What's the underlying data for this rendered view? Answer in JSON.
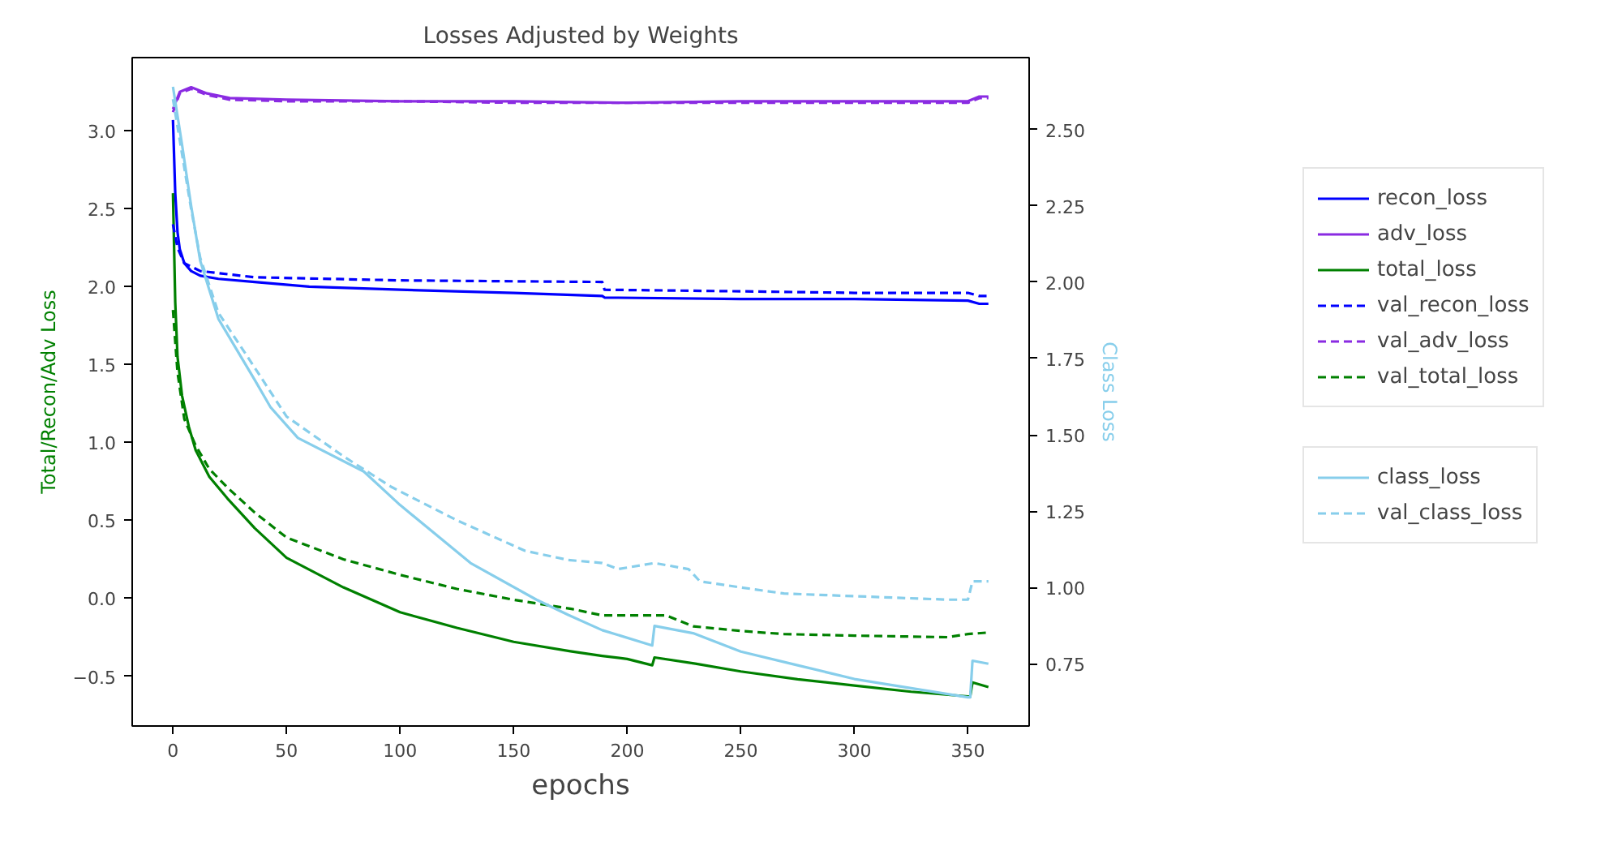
{
  "chart_data": {
    "type": "line",
    "title": "Losses Adjusted by Weights",
    "xlabel": "epochs",
    "ylabel": "Total/Recon/Adv Loss",
    "y2label": "Class Loss",
    "xlim": [
      -17.95,
      376.95
    ],
    "xticks": [
      0,
      50,
      100,
      150,
      200,
      250,
      300,
      350
    ],
    "ylim": [
      -0.82,
      3.47
    ],
    "yticks": [
      {
        "value": -0.5,
        "label": "−0.5"
      },
      {
        "value": 0,
        "label": "0.0"
      },
      0.5,
      {
        "value": 1,
        "label": "1.0"
      },
      1.5,
      {
        "value": 2,
        "label": "2.0"
      },
      2.5,
      {
        "value": 3,
        "label": "3.0"
      }
    ],
    "y2lim": [
      0.546,
      2.736
    ],
    "y2ticks": [
      0.75,
      {
        "value": 1,
        "label": "1.00"
      },
      1.25,
      {
        "value": 1.5,
        "label": "1.50"
      },
      1.75,
      {
        "value": 2,
        "label": "2.00"
      },
      2.25,
      {
        "value": 2.5,
        "label": "2.50"
      }
    ],
    "grid": false,
    "legend": "right",
    "marker": "none",
    "series": [
      {
        "name": "recon_loss",
        "color": "#0000ff",
        "line_style": "solid",
        "x": [
          0,
          1,
          2,
          3,
          5,
          8,
          12,
          20,
          36,
          60,
          100,
          150,
          189,
          190,
          250,
          300,
          350,
          355,
          359
        ],
        "values": [
          3.07,
          2.6,
          2.35,
          2.24,
          2.15,
          2.1,
          2.07,
          2.05,
          2.03,
          2.0,
          1.98,
          1.96,
          1.94,
          1.93,
          1.92,
          1.92,
          1.91,
          1.89,
          1.89
        ]
      },
      {
        "name": "adv_loss",
        "color": "#8a2be2",
        "line_style": "solid",
        "x": [
          0,
          3,
          8,
          15,
          25,
          50,
          100,
          150,
          200,
          250,
          300,
          350,
          355,
          359
        ],
        "values": [
          3.14,
          3.25,
          3.28,
          3.24,
          3.21,
          3.2,
          3.19,
          3.19,
          3.18,
          3.19,
          3.19,
          3.19,
          3.22,
          3.22
        ]
      },
      {
        "name": "total_loss",
        "color": "#008000",
        "line_style": "solid",
        "x": [
          0,
          1,
          2,
          4,
          7,
          10,
          16,
          24,
          36,
          50,
          75,
          100,
          125,
          150,
          175,
          189,
          200,
          211,
          212,
          230,
          250,
          275,
          300,
          325,
          350,
          351,
          352,
          359
        ],
        "values": [
          2.6,
          1.9,
          1.55,
          1.3,
          1.1,
          0.95,
          0.78,
          0.64,
          0.45,
          0.26,
          0.07,
          -0.09,
          -0.19,
          -0.28,
          -0.34,
          -0.37,
          -0.39,
          -0.43,
          -0.38,
          -0.42,
          -0.47,
          -0.52,
          -0.56,
          -0.6,
          -0.63,
          -0.63,
          -0.54,
          -0.57
        ]
      },
      {
        "name": "val_recon_loss",
        "color": "#0000ff",
        "line_style": "dashed",
        "x": [
          0,
          2,
          5,
          12,
          36,
          100,
          189,
          190,
          250,
          300,
          350,
          355,
          359
        ],
        "values": [
          2.4,
          2.25,
          2.15,
          2.1,
          2.06,
          2.04,
          2.03,
          1.98,
          1.97,
          1.96,
          1.96,
          1.94,
          1.94
        ]
      },
      {
        "name": "val_adv_loss",
        "color": "#8a2be2",
        "line_style": "dashed",
        "x": [
          0,
          3,
          8,
          15,
          25,
          50,
          100,
          150,
          200,
          250,
          300,
          350,
          355,
          359
        ],
        "values": [
          3.12,
          3.24,
          3.27,
          3.23,
          3.2,
          3.19,
          3.19,
          3.18,
          3.18,
          3.18,
          3.18,
          3.18,
          3.21,
          3.21
        ]
      },
      {
        "name": "val_total_loss",
        "color": "#008000",
        "line_style": "dashed",
        "x": [
          0,
          2,
          5,
          10,
          16,
          24,
          36,
          50,
          75,
          100,
          125,
          150,
          176,
          189,
          217,
          229,
          250,
          269,
          300,
          341,
          350,
          359
        ],
        "values": [
          1.85,
          1.45,
          1.15,
          0.98,
          0.83,
          0.71,
          0.55,
          0.39,
          0.25,
          0.15,
          0.06,
          -0.01,
          -0.07,
          -0.11,
          -0.11,
          -0.18,
          -0.21,
          -0.23,
          -0.24,
          -0.25,
          -0.23,
          -0.22
        ]
      },
      {
        "name": "class_loss",
        "color": "#87ceeb",
        "line_style": "solid",
        "axis": "y2",
        "x": [
          0,
          4,
          8,
          12,
          20,
          36,
          43,
          55,
          84,
          100,
          131,
          160,
          174,
          189,
          211,
          212,
          229,
          250,
          275,
          300,
          325,
          350,
          351,
          352,
          359
        ],
        "values": [
          2.64,
          2.45,
          2.25,
          2.07,
          1.88,
          1.68,
          1.59,
          1.49,
          1.38,
          1.27,
          1.08,
          0.96,
          0.91,
          0.86,
          0.81,
          0.874,
          0.85,
          0.79,
          0.745,
          0.7,
          0.67,
          0.64,
          0.64,
          0.76,
          0.75
        ]
      },
      {
        "name": "val_class_loss",
        "color": "#87ceeb",
        "line_style": "dashed",
        "axis": "y2",
        "x": [
          0,
          4,
          8,
          12,
          20,
          36,
          50,
          75,
          96,
          125,
          155,
          174,
          189,
          196,
          212,
          227,
          232,
          250,
          269,
          305,
          341,
          350,
          352,
          359
        ],
        "values": [
          2.6,
          2.42,
          2.24,
          2.08,
          1.9,
          1.72,
          1.56,
          1.43,
          1.33,
          1.22,
          1.12,
          1.09,
          1.08,
          1.06,
          1.08,
          1.06,
          1.02,
          1.0,
          0.98,
          0.97,
          0.96,
          0.96,
          1.02,
          1.02
        ]
      }
    ]
  }
}
